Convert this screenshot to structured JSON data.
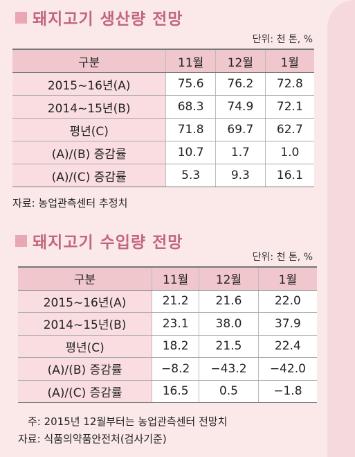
{
  "production": {
    "title": "돼지고기 생산량 전망",
    "unit": "단위: 천 톤, %",
    "headers": [
      "구분",
      "11월",
      "12월",
      "1월"
    ],
    "rows": [
      [
        "2015~16년(A)",
        "75.6",
        "76.2",
        "72.8"
      ],
      [
        "2014~15년(B)",
        "68.3",
        "74.9",
        "72.1"
      ],
      [
        "평년(C)",
        "71.8",
        "69.7",
        "62.7"
      ],
      [
        "(A)/(B) 증감률",
        "10.7",
        "1.7",
        "1.0"
      ],
      [
        "(A)/(C) 증감률",
        "5.3",
        "9.3",
        "16.1"
      ]
    ],
    "source": "자료: 농업관측센터 추정치"
  },
  "import": {
    "title": "돼지고기 수입량 전망",
    "unit": "단위: 천 톤, %",
    "headers": [
      "구분",
      "11월",
      "12월",
      "1월"
    ],
    "rows": [
      [
        "2015~16년(A)",
        "21.2",
        "21.6",
        "22.0"
      ],
      [
        "2014~15년(B)",
        "23.1",
        "38.0",
        "37.9"
      ],
      [
        "평년(C)",
        "18.2",
        "21.5",
        "22.4"
      ],
      [
        "(A)/(B) 증감률",
        "−8.2",
        "−43.2",
        "−42.0"
      ],
      [
        "(A)/(C) 증감률",
        "16.5",
        "0.5",
        "−1.8"
      ]
    ],
    "note": "주: 2015년 12월부터는 농업관측센터 전망치",
    "source": "자료: 식품의약품안전처(검사기준)"
  },
  "colors": {
    "accent": "#c2667a",
    "header_bg": "#f0c7cd",
    "label_bg": "#f9dde1",
    "page_bg": "#fbe9ea"
  }
}
